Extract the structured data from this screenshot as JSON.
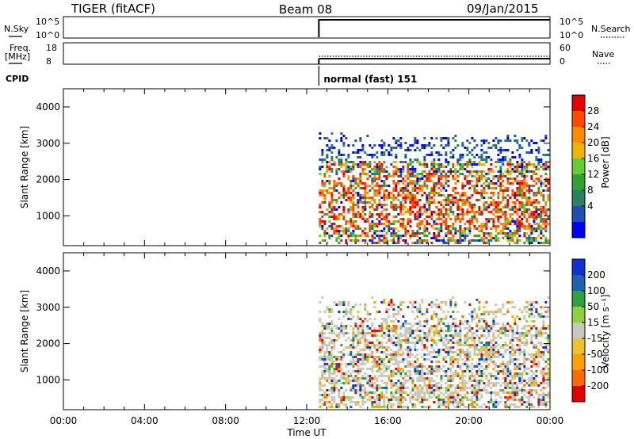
{
  "header": {
    "title": "TIGER (fitACF)",
    "beam": "Beam 08",
    "date": "09/Jan/2015"
  },
  "summary_panels": {
    "nsky_label": "N.Sky",
    "nsky_ticks": [
      "10^5",
      "10^0"
    ],
    "nsearch_label": "N.Search",
    "nsearch_ticks": [
      "10^5",
      "10^0"
    ],
    "freq_label": "Freq.",
    "freq_unit": "[MHz]",
    "freq_ticks": [
      "18",
      "8"
    ],
    "nave_label": "Nave",
    "nave_ticks": [
      "60",
      "0"
    ],
    "cpid_label": "CPID",
    "cpid_text": "normal (fast) 151",
    "data_start_hour": 12.6
  },
  "chart_data": [
    {
      "type": "heatmap",
      "title": "",
      "xlabel": "",
      "ylabel": "Slant Range [km]",
      "xlim": [
        0,
        24
      ],
      "ylim": [
        180,
        4500
      ],
      "y_ticks": [
        1000,
        2000,
        3000,
        4000
      ],
      "colorbar": {
        "label": "Power [dB]",
        "ticks": [
          "28",
          "24",
          "20",
          "16",
          "12",
          "8",
          "4"
        ],
        "colors": [
          "#e60000",
          "#ff4a00",
          "#ff8c00",
          "#f0b400",
          "#66cc33",
          "#33a033",
          "#2a8060",
          "#1f4fb0",
          "#0000f0"
        ]
      }
    },
    {
      "type": "heatmap",
      "title": "",
      "xlabel": "Time UT",
      "ylabel": "Slant Range [km]",
      "xlim": [
        0,
        24
      ],
      "ylim": [
        180,
        4500
      ],
      "y_ticks": [
        1000,
        2000,
        3000,
        4000
      ],
      "x_ticks": [
        "00:00",
        "04:00",
        "08:00",
        "12:00",
        "16:00",
        "20:00",
        "00:00"
      ],
      "colorbar": {
        "label": "Velocity [m s⁻¹]",
        "ticks": [
          "200",
          "100",
          "50",
          "15",
          "-15",
          "-50",
          "-100",
          "-200"
        ],
        "colors": [
          "#1030d0",
          "#2060b0",
          "#30a040",
          "#90d040",
          "#c8c8c0",
          "#f0c030",
          "#ffa000",
          "#ff6a00",
          "#e00000"
        ]
      }
    }
  ]
}
